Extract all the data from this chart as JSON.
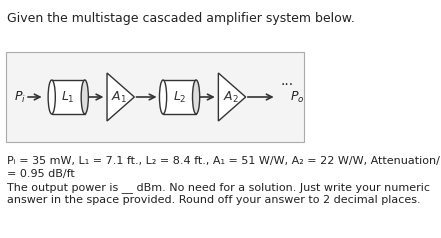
{
  "title": "Given the multistage cascaded amplifier system below.",
  "title_fontsize": 9,
  "bg_color": "#ffffff",
  "diagram_box_color": "#f0f0f0",
  "diagram_box_edge": "#cccccc",
  "text_color": "#222222",
  "params_line1": "Pᵢ = 35 mW, L₁ = 7.1 ft., L₂ = 8.4 ft., A₁ = 51 W/W, A₂ = 22 W/W, Attenuation/ foot",
  "params_line2": "= 0.95 dB/ft",
  "question_line1": "The output power is __ dBm. No need for a solution. Just write your numeric",
  "question_line2": "answer in the space provided. Round off your answer to 2 decimal places.",
  "component_stroke": "#333333",
  "component_fill": "#ffffff",
  "arrow_color": "#333333",
  "font_size_diagram": 8,
  "font_size_text": 8
}
